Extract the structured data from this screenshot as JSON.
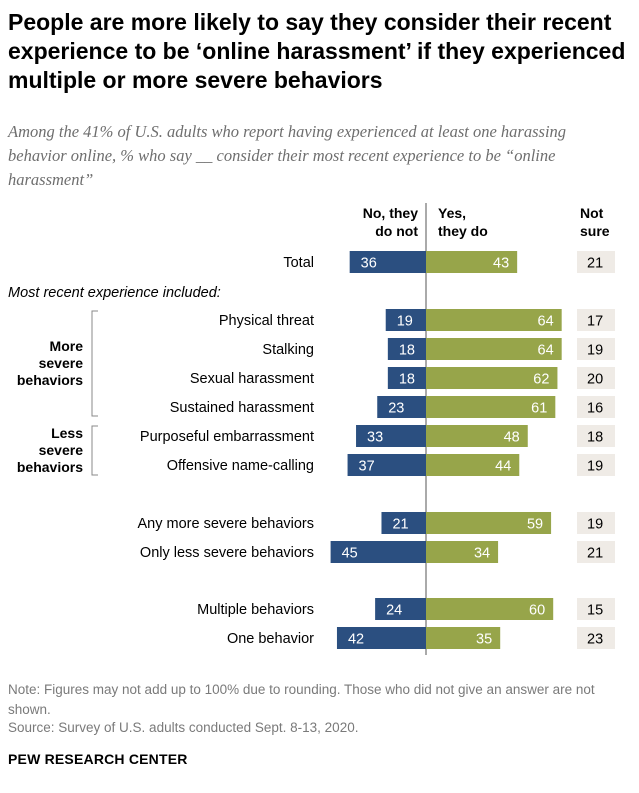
{
  "title": "People are more likely to say they consider their recent experience to be ‘online harassment’ if they experienced multiple or more severe behaviors",
  "subtitle": "Among the 41% of U.S. adults who report having experienced at least one harassing behavior online, % who say __ consider their most recent experience to be “online harassment”",
  "note": "Note: Figures may not add up to 100% due to rounding. Those who did not give an answer are not shown.",
  "source": "Source: Survey of U.S. adults conducted Sept. 8-13, 2020.",
  "brand": "PEW RESEARCH CENTER",
  "colors": {
    "no": "#2b4f80",
    "yes": "#97a54a",
    "notsure": "#efebe6"
  },
  "chart_data": {
    "type": "bar",
    "orientation": "horizontal-diverging",
    "series_headers": [
      {
        "key": "no",
        "lines": [
          "No, they",
          "do not"
        ]
      },
      {
        "key": "yes",
        "lines": [
          "Yes,",
          "they do"
        ]
      },
      {
        "key": "notsure",
        "lines": [
          "Not",
          "sure"
        ]
      }
    ],
    "section_label": "Most recent experience included:",
    "groups": [
      {
        "lines": [
          "More",
          "severe",
          "behaviors"
        ]
      },
      {
        "lines": [
          "Less",
          "severe",
          "behaviors"
        ]
      }
    ],
    "categories": [
      "Total",
      "Physical threat",
      "Stalking",
      "Sexual harassment",
      "Sustained harassment",
      "Purposeful embarrassment",
      "Offensive name-calling",
      "Any more severe behaviors",
      "Only less severe behaviors",
      "Multiple behaviors",
      "One behavior"
    ],
    "series": [
      {
        "name": "No, they do not",
        "values": [
          36,
          19,
          18,
          18,
          23,
          33,
          37,
          21,
          45,
          24,
          42
        ]
      },
      {
        "name": "Yes, they do",
        "values": [
          43,
          64,
          64,
          62,
          61,
          48,
          44,
          59,
          34,
          60,
          35
        ]
      },
      {
        "name": "Not sure",
        "values": [
          21,
          17,
          19,
          20,
          16,
          18,
          19,
          19,
          21,
          15,
          23
        ]
      }
    ]
  }
}
